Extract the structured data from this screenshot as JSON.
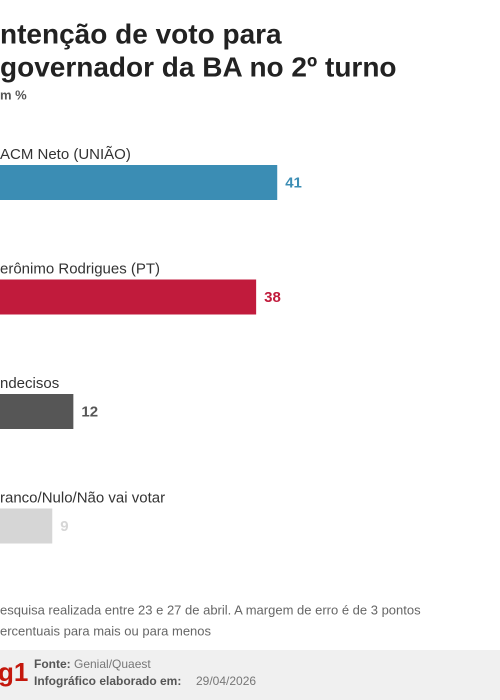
{
  "chart_data": {
    "type": "bar",
    "orientation": "horizontal",
    "title": [
      "ntenção de voto para",
      "governador da BA no 2º turno"
    ],
    "subtitle": "m %",
    "categories": [
      "ACM Neto (UNIÃO)",
      "erônimo Rodrigues (PT)",
      "ndecisos",
      "ranco/Nulo/Não vai votar"
    ],
    "values": [
      41,
      38,
      12,
      9
    ],
    "colors": [
      "#3b8db4",
      "#c11b3c",
      "#565656",
      "#d6d6d6"
    ]
  },
  "note": [
    "esquisa realizada entre 23 e 27 de abril. A margem de erro é de 3 pontos",
    "ercentuais para mais ou para menos"
  ],
  "footer": {
    "logo": "g1",
    "source_label": "Fonte:",
    "source": "Genial/Quaest",
    "date_label": "Infográfico elaborado em:",
    "date": "29/04/2026"
  }
}
